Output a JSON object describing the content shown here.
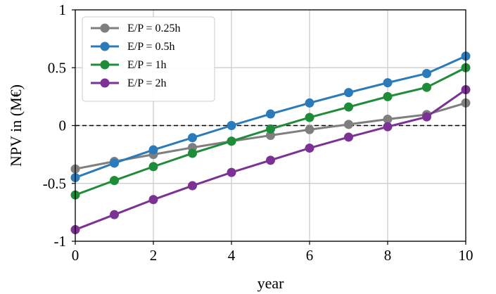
{
  "chart_data": {
    "type": "line",
    "xlabel": "year",
    "ylabel": "NPV in (M€)",
    "xlim": [
      0,
      10
    ],
    "ylim": [
      -1,
      1
    ],
    "xticks": [
      0,
      2,
      4,
      6,
      8,
      10
    ],
    "yticks": [
      1,
      0.5,
      0,
      -0.5,
      -1
    ],
    "xtick_labels": [
      "0",
      "2",
      "4",
      "6",
      "8",
      "10"
    ],
    "ytick_labels": [
      "1",
      "0.5",
      "0",
      "-0.5",
      "-1"
    ],
    "grid": true,
    "reference_line": {
      "y": 0,
      "style": "dashed",
      "color": "#000000"
    },
    "legend_position": "top-left",
    "x": [
      0,
      1,
      2,
      3,
      4,
      5,
      6,
      7,
      8,
      9,
      10
    ],
    "series": [
      {
        "name": "E/P = 0.25h",
        "color": "#7f7f7f",
        "values": [
          -0.375,
          -0.31,
          -0.25,
          -0.19,
          -0.135,
          -0.085,
          -0.035,
          0.01,
          0.055,
          0.095,
          0.195
        ]
      },
      {
        "name": "E/P = 0.5h",
        "color": "#2b7bba",
        "values": [
          -0.45,
          -0.325,
          -0.21,
          -0.105,
          0.0,
          0.1,
          0.195,
          0.285,
          0.37,
          0.45,
          0.6
        ]
      },
      {
        "name": "E/P = 1h",
        "color": "#1f8c3a",
        "values": [
          -0.6,
          -0.475,
          -0.355,
          -0.24,
          -0.135,
          -0.03,
          0.07,
          0.16,
          0.25,
          0.33,
          0.5
        ]
      },
      {
        "name": "E/P = 2h",
        "color": "#7b3294",
        "values": [
          -0.9,
          -0.77,
          -0.64,
          -0.52,
          -0.405,
          -0.3,
          -0.195,
          -0.1,
          -0.01,
          0.075,
          0.31
        ]
      }
    ]
  }
}
